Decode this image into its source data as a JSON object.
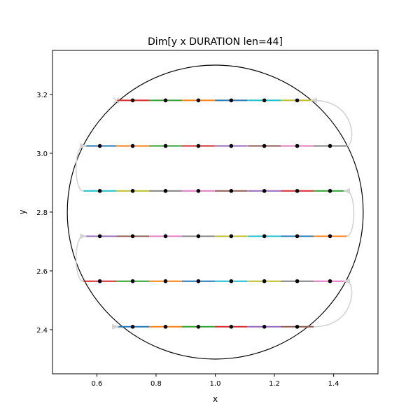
{
  "chart_data": {
    "type": "line",
    "title": "Dim[y x DURATION len=44]",
    "xlabel": "x",
    "ylabel": "y",
    "xlim": [
      0.45,
      1.55
    ],
    "ylim": [
      2.25,
      3.35
    ],
    "xticks": [
      0.6,
      0.8,
      1.0,
      1.2,
      1.4
    ],
    "xtick_labels": [
      "0.6",
      "0.8",
      "1.0",
      "1.2",
      "1.4"
    ],
    "yticks": [
      2.4,
      2.6,
      2.8,
      3.0,
      3.2
    ],
    "ytick_labels": [
      "2.4",
      "2.6",
      "2.8",
      "3.0",
      "3.2"
    ],
    "grid": false,
    "circle": {
      "center": [
        1.0,
        2.8
      ],
      "radius": 0.5,
      "color": "#000000"
    },
    "point_spacing": 0.111,
    "palette": [
      "#1f77b4",
      "#ff7f0e",
      "#2ca02c",
      "#d62728",
      "#9467bd",
      "#8c564b",
      "#e377c2",
      "#7f7f7f",
      "#bcbd22",
      "#17becf"
    ],
    "connector_color": "#d3d3d3",
    "point_color": "#000000",
    "rows": [
      {
        "y": 2.41,
        "direction": "right",
        "x": [
          0.721,
          0.832,
          0.943,
          1.054,
          1.166,
          1.277
        ]
      },
      {
        "y": 2.565,
        "direction": "left",
        "x": [
          1.388,
          1.277,
          1.166,
          1.054,
          0.943,
          0.832,
          0.721,
          0.61
        ]
      },
      {
        "y": 2.718,
        "direction": "right",
        "x": [
          0.61,
          0.721,
          0.832,
          0.943,
          1.054,
          1.166,
          1.277,
          1.388
        ]
      },
      {
        "y": 2.872,
        "direction": "left",
        "x": [
          1.388,
          1.277,
          1.166,
          1.054,
          0.943,
          0.832,
          0.721,
          0.61
        ]
      },
      {
        "y": 3.025,
        "direction": "right",
        "x": [
          0.61,
          0.721,
          0.832,
          0.943,
          1.054,
          1.166,
          1.277,
          1.388
        ]
      },
      {
        "y": 3.18,
        "direction": "left",
        "x": [
          1.277,
          1.166,
          1.054,
          0.943,
          0.832,
          0.721
        ]
      }
    ]
  }
}
